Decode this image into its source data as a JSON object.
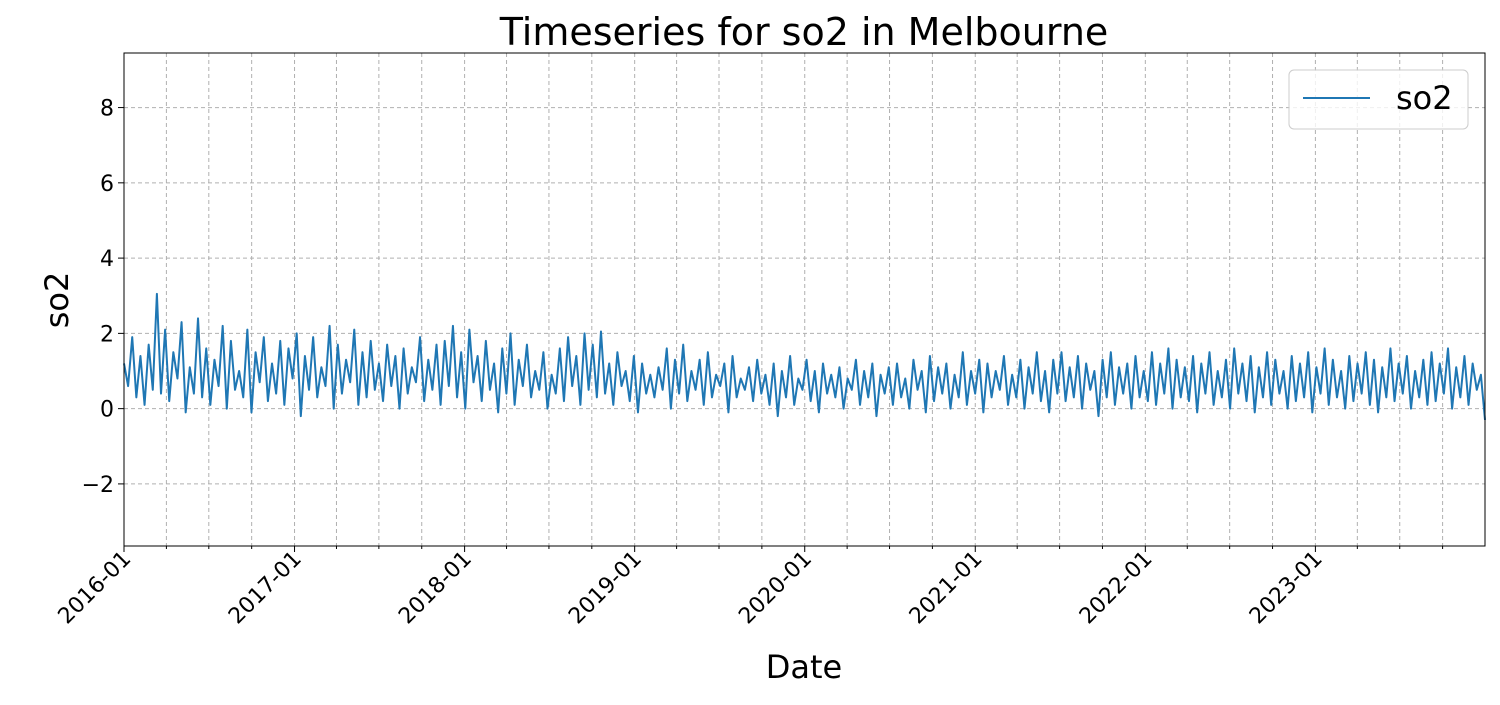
{
  "chart_data": {
    "type": "line",
    "title": "Timeseries for so2 in Melbourne",
    "xlabel": "Date",
    "ylabel": "so2",
    "xlim": [
      "2016-01-01",
      "2023-12-31"
    ],
    "ylim": [
      -3.65,
      9.45
    ],
    "yticks": [
      -2,
      0,
      2,
      4,
      6,
      8
    ],
    "ytick_labels": [
      "−2",
      "0",
      "2",
      "4",
      "6",
      "8"
    ],
    "xticks": [
      "2016-01-01",
      "2017-01-01",
      "2018-01-01",
      "2019-01-01",
      "2020-01-01",
      "2021-01-01",
      "2022-01-01",
      "2023-01-01"
    ],
    "xtick_labels": [
      "2016-01",
      "2017-01",
      "2018-01",
      "2019-01",
      "2020-01",
      "2021-01",
      "2022-01",
      "2023-01"
    ],
    "minor_xticks": "quarterly",
    "grid": true,
    "legend_position": "top-right",
    "series": [
      {
        "name": "so2",
        "color": "#1f77b4",
        "sampling": "weekly",
        "start": "2016-01-01",
        "values": [
          1.2,
          0.6,
          1.9,
          0.3,
          1.4,
          0.1,
          1.7,
          0.5,
          3.05,
          0.4,
          2.1,
          0.2,
          1.5,
          0.8,
          2.3,
          -0.1,
          1.1,
          0.4,
          2.4,
          0.3,
          1.6,
          0.1,
          1.3,
          0.6,
          2.2,
          0.0,
          1.8,
          0.5,
          1.0,
          0.3,
          2.1,
          -0.1,
          1.5,
          0.7,
          1.9,
          0.2,
          1.2,
          0.4,
          1.8,
          0.1,
          1.6,
          0.8,
          2.0,
          -0.2,
          1.4,
          0.5,
          1.9,
          0.3,
          1.1,
          0.6,
          2.2,
          0.0,
          1.7,
          0.4,
          1.3,
          0.7,
          2.1,
          0.1,
          1.5,
          0.3,
          1.8,
          0.5,
          1.2,
          0.2,
          1.7,
          0.6,
          1.4,
          0.0,
          1.6,
          0.4,
          1.1,
          0.7,
          1.9,
          0.2,
          1.3,
          0.5,
          1.7,
          0.1,
          1.8,
          0.6,
          2.2,
          0.3,
          1.5,
          0.0,
          2.1,
          0.7,
          1.4,
          0.2,
          1.8,
          0.5,
          1.2,
          -0.1,
          1.6,
          0.4,
          2.0,
          0.1,
          1.3,
          0.6,
          1.7,
          0.3,
          1.0,
          0.5,
          1.5,
          0.0,
          0.9,
          0.4,
          1.6,
          0.2,
          1.9,
          0.6,
          1.4,
          0.1,
          2.0,
          0.5,
          1.7,
          0.3,
          2.05,
          0.4,
          1.2,
          0.1,
          1.5,
          0.6,
          1.0,
          0.2,
          1.4,
          -0.1,
          1.2,
          0.4,
          0.9,
          0.3,
          1.1,
          0.5,
          1.6,
          0.0,
          1.3,
          0.4,
          1.7,
          0.2,
          1.0,
          0.5,
          1.3,
          0.1,
          1.5,
          0.3,
          0.9,
          0.6,
          1.2,
          -0.1,
          1.4,
          0.3,
          0.8,
          0.5,
          1.1,
          0.2,
          1.3,
          0.4,
          0.9,
          0.1,
          1.2,
          -0.2,
          1.0,
          0.3,
          1.4,
          0.1,
          0.8,
          0.5,
          1.3,
          0.2,
          1.0,
          -0.1,
          1.2,
          0.4,
          0.9,
          0.3,
          1.1,
          0.0,
          0.8,
          0.5,
          1.3,
          0.1,
          1.0,
          0.3,
          1.2,
          -0.2,
          0.9,
          0.4,
          1.1,
          0.1,
          1.2,
          0.3,
          0.8,
          0.0,
          1.3,
          0.5,
          1.0,
          -0.1,
          1.4,
          0.2,
          1.1,
          0.4,
          1.2,
          0.0,
          0.9,
          0.3,
          1.5,
          0.1,
          1.0,
          0.4,
          1.3,
          -0.1,
          1.2,
          0.3,
          1.0,
          0.5,
          1.4,
          0.1,
          0.9,
          0.3,
          1.3,
          0.0,
          1.1,
          0.4,
          1.5,
          0.2,
          1.0,
          -0.1,
          1.3,
          0.4,
          1.5,
          0.2,
          1.1,
          0.3,
          1.4,
          0.0,
          1.2,
          0.5,
          1.0,
          -0.2,
          1.3,
          0.3,
          1.5,
          0.1,
          1.1,
          0.4,
          1.2,
          0.0,
          1.4,
          0.3,
          1.0,
          0.2,
          1.5,
          0.1,
          1.2,
          0.4,
          1.6,
          0.0,
          1.3,
          0.3,
          1.1,
          0.2,
          1.4,
          -0.1,
          1.2,
          0.4,
          1.5,
          0.1,
          1.0,
          0.3,
          1.3,
          0.0,
          1.6,
          0.4,
          1.2,
          0.2,
          1.4,
          -0.1,
          1.1,
          0.3,
          1.5,
          0.1,
          1.3,
          0.4,
          1.0,
          0.0,
          1.4,
          0.2,
          1.2,
          0.3,
          1.5,
          -0.1,
          1.1,
          0.4,
          1.6,
          0.1,
          1.3,
          0.3,
          1.0,
          0.0,
          1.4,
          0.2,
          1.2,
          0.4,
          1.5,
          0.1,
          1.3,
          -0.1,
          1.1,
          0.3,
          1.6,
          0.2,
          1.2,
          0.4,
          1.4,
          0.0,
          1.0,
          0.3,
          1.3,
          0.1,
          1.5,
          0.2,
          1.2,
          0.4,
          1.6,
          0.0,
          1.1,
          0.3,
          1.4,
          0.1,
          1.2,
          0.5,
          0.9,
          -0.3
        ]
      }
    ]
  }
}
